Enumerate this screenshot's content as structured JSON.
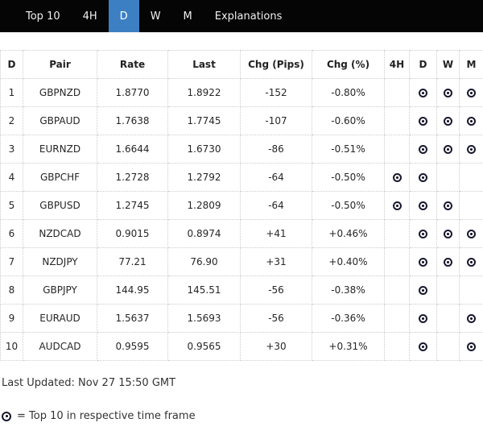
{
  "nav": {
    "background": "#050505",
    "selected_color": "#3c80c3",
    "tabs": [
      {
        "label": "Top 10",
        "selected": false
      },
      {
        "label": "4H",
        "selected": false
      },
      {
        "label": "D",
        "selected": true
      },
      {
        "label": "W",
        "selected": false
      },
      {
        "label": "M",
        "selected": false
      },
      {
        "label": "Explanations",
        "selected": false
      }
    ]
  },
  "table": {
    "columns": [
      "D",
      "Pair",
      "Rate",
      "Last",
      "Chg (Pips)",
      "Chg (%)",
      "4H",
      "D",
      "W",
      "M"
    ],
    "rows": [
      {
        "rank": "1",
        "pair": "GBPNZD",
        "rate": "1.8770",
        "last": "1.8922",
        "chg_pips": "-152",
        "chg_pct": "-0.80%",
        "tf_4h": false,
        "tf_d": true,
        "tf_w": true,
        "tf_m": true
      },
      {
        "rank": "2",
        "pair": "GBPAUD",
        "rate": "1.7638",
        "last": "1.7745",
        "chg_pips": "-107",
        "chg_pct": "-0.60%",
        "tf_4h": false,
        "tf_d": true,
        "tf_w": true,
        "tf_m": true
      },
      {
        "rank": "3",
        "pair": "EURNZD",
        "rate": "1.6644",
        "last": "1.6730",
        "chg_pips": "-86",
        "chg_pct": "-0.51%",
        "tf_4h": false,
        "tf_d": true,
        "tf_w": true,
        "tf_m": true
      },
      {
        "rank": "4",
        "pair": "GBPCHF",
        "rate": "1.2728",
        "last": "1.2792",
        "chg_pips": "-64",
        "chg_pct": "-0.50%",
        "tf_4h": true,
        "tf_d": true,
        "tf_w": false,
        "tf_m": false
      },
      {
        "rank": "5",
        "pair": "GBPUSD",
        "rate": "1.2745",
        "last": "1.2809",
        "chg_pips": "-64",
        "chg_pct": "-0.50%",
        "tf_4h": true,
        "tf_d": true,
        "tf_w": true,
        "tf_m": false
      },
      {
        "rank": "6",
        "pair": "NZDCAD",
        "rate": "0.9015",
        "last": "0.8974",
        "chg_pips": "+41",
        "chg_pct": "+0.46%",
        "tf_4h": false,
        "tf_d": true,
        "tf_w": true,
        "tf_m": true
      },
      {
        "rank": "7",
        "pair": "NZDJPY",
        "rate": "77.21",
        "last": "76.90",
        "chg_pips": "+31",
        "chg_pct": "+0.40%",
        "tf_4h": false,
        "tf_d": true,
        "tf_w": true,
        "tf_m": true
      },
      {
        "rank": "8",
        "pair": "GBPJPY",
        "rate": "144.95",
        "last": "145.51",
        "chg_pips": "-56",
        "chg_pct": "-0.38%",
        "tf_4h": false,
        "tf_d": true,
        "tf_w": false,
        "tf_m": false
      },
      {
        "rank": "9",
        "pair": "EURAUD",
        "rate": "1.5637",
        "last": "1.5693",
        "chg_pips": "-56",
        "chg_pct": "-0.36%",
        "tf_4h": false,
        "tf_d": true,
        "tf_w": false,
        "tf_m": true
      },
      {
        "rank": "10",
        "pair": "AUDCAD",
        "rate": "0.9595",
        "last": "0.9565",
        "chg_pips": "+30",
        "chg_pct": "+0.31%",
        "tf_4h": false,
        "tf_d": true,
        "tf_w": false,
        "tf_m": true
      }
    ]
  },
  "footer": {
    "last_updated": "Last Updated: Nov 27 15:50 GMT",
    "legend_text": "= Top 10 in respective time frame"
  }
}
